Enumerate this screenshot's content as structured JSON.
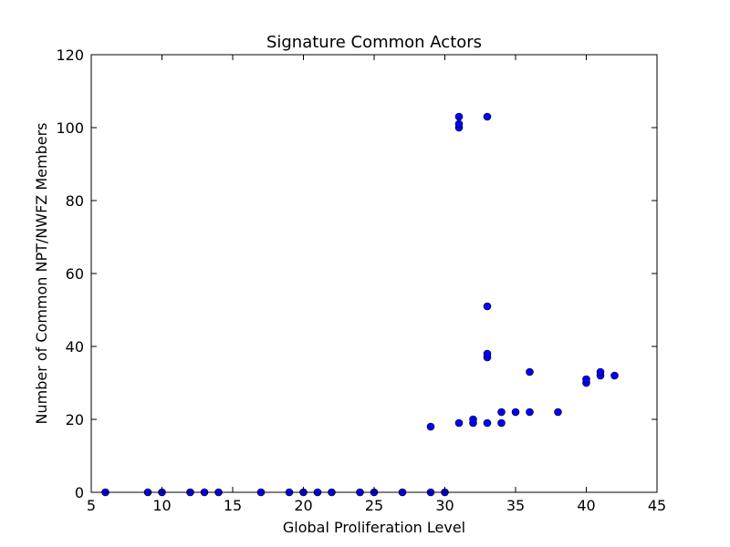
{
  "chart_data": {
    "type": "scatter",
    "title": "Signature Common Actors",
    "xlabel": "Global Proliferation Level",
    "ylabel": "Number of Common NPT/NWFZ Members",
    "xlim": [
      5,
      45
    ],
    "ylim": [
      0,
      120
    ],
    "xticks": [
      5,
      10,
      15,
      20,
      25,
      30,
      35,
      40,
      45
    ],
    "yticks": [
      0,
      20,
      40,
      60,
      80,
      100,
      120
    ],
    "grid": false,
    "marker_color": "#0000ff",
    "points": [
      [
        6,
        0
      ],
      [
        9,
        0
      ],
      [
        10,
        0
      ],
      [
        12,
        0
      ],
      [
        13,
        0
      ],
      [
        14,
        0
      ],
      [
        17,
        0
      ],
      [
        19,
        0
      ],
      [
        20,
        0
      ],
      [
        21,
        0
      ],
      [
        22,
        0
      ],
      [
        24,
        0
      ],
      [
        25,
        0
      ],
      [
        27,
        0
      ],
      [
        29,
        0
      ],
      [
        30,
        0
      ],
      [
        29,
        18
      ],
      [
        31,
        19
      ],
      [
        31,
        100
      ],
      [
        31,
        101
      ],
      [
        31,
        103
      ],
      [
        32,
        19
      ],
      [
        32,
        20
      ],
      [
        33,
        19
      ],
      [
        33,
        37
      ],
      [
        33,
        38
      ],
      [
        33,
        51
      ],
      [
        33,
        103
      ],
      [
        34,
        19
      ],
      [
        34,
        22
      ],
      [
        35,
        22
      ],
      [
        36,
        22
      ],
      [
        36,
        33
      ],
      [
        38,
        22
      ],
      [
        40,
        30
      ],
      [
        40,
        31
      ],
      [
        41,
        32
      ],
      [
        41,
        33
      ],
      [
        42,
        32
      ]
    ]
  }
}
